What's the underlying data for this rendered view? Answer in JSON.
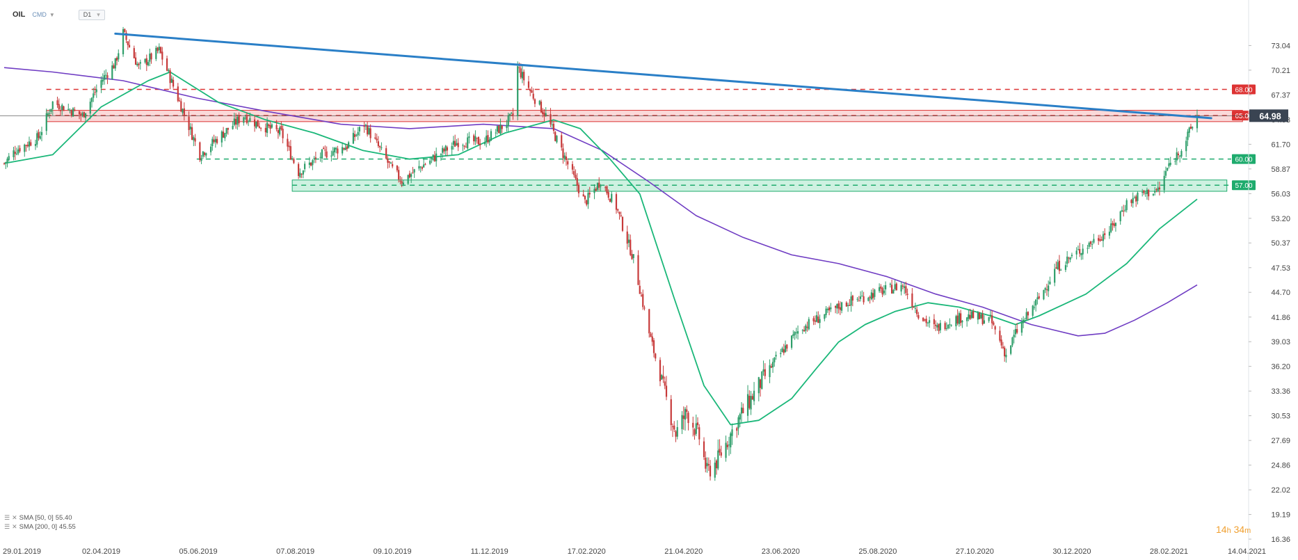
{
  "header": {
    "symbol": "OIL",
    "market": "CMD",
    "timeframe": "D1"
  },
  "indicators": [
    {
      "label": "SMA [50, 0]",
      "value": "55.40"
    },
    {
      "label": "SMA [200, 0]",
      "value": "45.55"
    }
  ],
  "timer": {
    "hours": "14",
    "h_unit": "h",
    "minutes": "34",
    "m_unit": "m"
  },
  "colors": {
    "bull": "#2e9e6a",
    "bear": "#c73a3a",
    "trendline": "#2a7fc7",
    "resistance": "#d33",
    "support": "#1eab6d",
    "sma50": "#1ab779",
    "sma200": "#6f3cc3"
  },
  "chart_data": {
    "type": "candlestick",
    "ylim": [
      16.36,
      75.87
    ],
    "y_ticks": [
      "73.04",
      "70.21",
      "67.37",
      "64.53",
      "61.70",
      "58.87",
      "56.03",
      "53.20",
      "50.37",
      "47.53",
      "44.70",
      "41.86",
      "39.03",
      "36.20",
      "33.36",
      "30.53",
      "27.69",
      "24.86",
      "22.02",
      "19.19",
      "16.36"
    ],
    "x_labels": [
      "29.01.2019",
      "02.04.2019",
      "05.06.2019",
      "07.08.2019",
      "09.10.2019",
      "11.12.2019",
      "17.02.2020",
      "21.04.2020",
      "23.06.2020",
      "25.08.2020",
      "27.10.2020",
      "30.12.2020",
      "28.02.2021",
      "14.04.2021"
    ],
    "last_price": "64.98",
    "levels": [
      {
        "value": 68.0,
        "label": "68.00",
        "kind": "resistance"
      },
      {
        "value": 65.0,
        "label": "65.00",
        "kind": "resistance"
      },
      {
        "value": 60.0,
        "label": "60.00",
        "kind": "support"
      },
      {
        "value": 57.0,
        "label": "57.00",
        "kind": "support"
      }
    ],
    "zones": [
      {
        "from": 64.3,
        "to": 65.6,
        "kind": "resistance"
      },
      {
        "from": 56.3,
        "to": 57.6,
        "kind": "support"
      }
    ],
    "trendline": {
      "start": [
        "2019-04-10",
        74.4
      ],
      "end": [
        "2021-03-10",
        64.7
      ]
    },
    "close_path": [
      [
        "2019-01-29",
        59.5
      ],
      [
        "2019-02-05",
        61
      ],
      [
        "2019-02-20",
        62.5
      ],
      [
        "2019-03-01",
        66.5
      ],
      [
        "2019-03-20",
        65
      ],
      [
        "2019-04-01",
        69
      ],
      [
        "2019-04-10",
        71
      ],
      [
        "2019-04-15",
        74.5
      ],
      [
        "2019-04-25",
        70.5
      ],
      [
        "2019-05-08",
        72.5
      ],
      [
        "2019-05-20",
        67
      ],
      [
        "2019-06-03",
        60.5
      ],
      [
        "2019-06-15",
        62.5
      ],
      [
        "2019-07-01",
        65
      ],
      [
        "2019-07-10",
        64
      ],
      [
        "2019-07-25",
        63
      ],
      [
        "2019-08-05",
        58.5
      ],
      [
        "2019-08-20",
        60.5
      ],
      [
        "2019-09-05",
        61.5
      ],
      [
        "2019-09-16",
        64
      ],
      [
        "2019-09-23",
        62
      ],
      [
        "2019-10-03",
        59
      ],
      [
        "2019-10-10",
        57.5
      ],
      [
        "2019-10-25",
        59.5
      ],
      [
        "2019-11-15",
        62
      ],
      [
        "2019-12-01",
        62
      ],
      [
        "2019-12-15",
        64
      ],
      [
        "2019-12-20",
        65
      ],
      [
        "2019-12-23",
        70.5
      ],
      [
        "2020-01-01",
        67.5
      ],
      [
        "2020-01-10",
        65
      ],
      [
        "2020-01-20",
        61
      ],
      [
        "2020-02-04",
        55
      ],
      [
        "2020-02-14",
        57.5
      ],
      [
        "2020-02-24",
        54.5
      ],
      [
        "2020-03-06",
        48.5
      ],
      [
        "2020-03-16",
        40
      ],
      [
        "2020-03-26",
        33
      ],
      [
        "2020-04-02",
        28.5
      ],
      [
        "2020-04-09",
        31
      ],
      [
        "2020-04-17",
        28
      ],
      [
        "2020-04-22",
        24
      ],
      [
        "2020-04-29",
        25.5
      ],
      [
        "2020-05-10",
        29.5
      ],
      [
        "2020-05-25",
        34
      ],
      [
        "2020-06-05",
        37
      ],
      [
        "2020-06-20",
        40.5
      ],
      [
        "2020-07-05",
        42
      ],
      [
        "2020-07-20",
        43.5
      ],
      [
        "2020-08-05",
        44.5
      ],
      [
        "2020-08-25",
        45.5
      ],
      [
        "2020-09-05",
        42
      ],
      [
        "2020-09-15",
        40.5
      ],
      [
        "2020-09-25",
        41.5
      ],
      [
        "2020-10-05",
        42
      ],
      [
        "2020-10-20",
        41.5
      ],
      [
        "2020-10-30",
        37.5
      ],
      [
        "2020-11-05",
        40
      ],
      [
        "2020-11-20",
        44
      ],
      [
        "2020-12-01",
        47.5
      ],
      [
        "2020-12-20",
        50
      ],
      [
        "2021-01-05",
        52
      ],
      [
        "2021-01-15",
        55
      ],
      [
        "2021-01-25",
        56
      ],
      [
        "2021-02-05",
        56.5
      ],
      [
        "2021-02-10",
        59
      ],
      [
        "2021-02-20",
        61.5
      ],
      [
        "2021-03-01",
        64.98
      ]
    ],
    "sma50": [
      [
        "2019-01-29",
        59.5
      ],
      [
        "2019-03-01",
        60.5
      ],
      [
        "2019-04-01",
        66
      ],
      [
        "2019-05-01",
        69
      ],
      [
        "2019-05-15",
        70
      ],
      [
        "2019-06-15",
        66.5
      ],
      [
        "2019-07-15",
        64.5
      ],
      [
        "2019-08-15",
        63
      ],
      [
        "2019-09-15",
        61
      ],
      [
        "2019-10-15",
        60
      ],
      [
        "2019-11-15",
        60.5
      ],
      [
        "2019-12-15",
        63
      ],
      [
        "2020-01-15",
        64.5
      ],
      [
        "2020-02-01",
        63.5
      ],
      [
        "2020-02-20",
        60
      ],
      [
        "2020-03-10",
        56
      ],
      [
        "2020-04-01",
        44
      ],
      [
        "2020-04-20",
        34
      ],
      [
        "2020-05-07",
        29.5
      ],
      [
        "2020-05-25",
        30
      ],
      [
        "2020-06-15",
        32.5
      ],
      [
        "2020-07-01",
        36
      ],
      [
        "2020-07-15",
        39
      ],
      [
        "2020-08-01",
        41
      ],
      [
        "2020-08-20",
        42.5
      ],
      [
        "2020-09-10",
        43.5
      ],
      [
        "2020-09-30",
        43
      ],
      [
        "2020-10-20",
        42
      ],
      [
        "2020-11-05",
        41
      ],
      [
        "2020-11-20",
        42
      ],
      [
        "2020-12-20",
        44.5
      ],
      [
        "2021-01-15",
        48
      ],
      [
        "2021-02-05",
        52
      ],
      [
        "2021-03-01",
        55.4
      ]
    ],
    "sma200": [
      [
        "2019-01-29",
        70.5
      ],
      [
        "2019-03-01",
        70
      ],
      [
        "2019-04-15",
        69
      ],
      [
        "2019-06-01",
        67
      ],
      [
        "2019-07-15",
        65.5
      ],
      [
        "2019-09-01",
        64
      ],
      [
        "2019-10-15",
        63.5
      ],
      [
        "2019-12-01",
        64
      ],
      [
        "2020-01-15",
        63.5
      ],
      [
        "2020-02-15",
        61
      ],
      [
        "2020-03-15",
        57.5
      ],
      [
        "2020-04-15",
        53.5
      ],
      [
        "2020-05-15",
        51
      ],
      [
        "2020-06-15",
        49
      ],
      [
        "2020-07-15",
        48
      ],
      [
        "2020-08-15",
        46.5
      ],
      [
        "2020-09-15",
        44.5
      ],
      [
        "2020-10-15",
        43
      ],
      [
        "2020-11-15",
        41
      ],
      [
        "2020-12-15",
        39.7
      ],
      [
        "2021-01-01",
        40
      ],
      [
        "2021-01-20",
        41.5
      ],
      [
        "2021-02-10",
        43.5
      ],
      [
        "2021-03-01",
        45.55
      ]
    ]
  }
}
